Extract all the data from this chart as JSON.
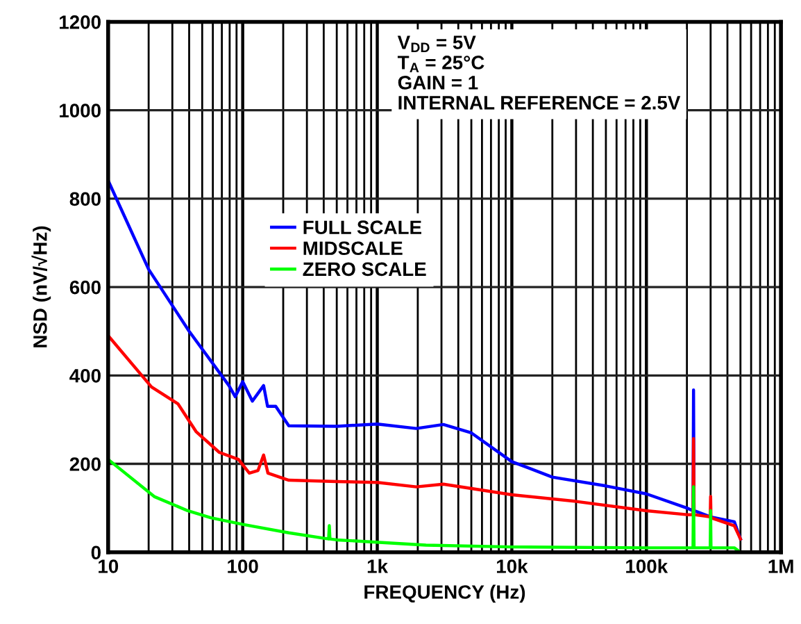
{
  "chart_data": {
    "type": "line",
    "xlabel": "FREQUENCY (Hz)",
    "ylabel": "NSD (nV/√Hz)",
    "xlim": [
      10,
      1000000
    ],
    "ylim": [
      0,
      1200
    ],
    "xticks": [
      {
        "value": 10,
        "label": "10"
      },
      {
        "value": 100,
        "label": "100"
      },
      {
        "value": 1000,
        "label": "1k"
      },
      {
        "value": 10000,
        "label": "10k"
      },
      {
        "value": 100000,
        "label": "100k"
      },
      {
        "value": 1000000,
        "label": "1M"
      }
    ],
    "yticks": [
      0,
      200,
      400,
      600,
      800,
      1000,
      1200
    ],
    "log": "x",
    "grid": true,
    "legend": "center left",
    "marker": "none",
    "line_style": "solid",
    "annotations": [
      "V$_{DD}$ = 5V",
      "T$_{A}$ = 25°C",
      "GAIN = 1",
      "INTERNAL REFERENCE = 2.5V"
    ],
    "series": [
      {
        "name": "FULL SCALE",
        "color": "#0000ff",
        "x": [
          10,
          20,
          40,
          79,
          88,
          100,
          118,
          143,
          153,
          176,
          220,
          500,
          1000,
          1950,
          3100,
          5000,
          10000,
          20000,
          50000,
          100000,
          200000,
          222000,
          224000,
          226000,
          300000,
          450000,
          500000
        ],
        "values": [
          841,
          640,
          500,
          377,
          352,
          386,
          342,
          377,
          330,
          330,
          286,
          285,
          290,
          280,
          289,
          270,
          205,
          170,
          150,
          132,
          100,
          94,
          367,
          94,
          80,
          69,
          30
        ]
      },
      {
        "name": "MIDSCALE",
        "color": "#ff0000",
        "x": [
          10,
          21,
          33,
          45,
          67,
          93,
          112,
          130,
          143,
          154,
          220,
          500,
          1000,
          1950,
          3100,
          10000,
          30000,
          100000,
          200000,
          222000,
          224000,
          226000,
          298000,
          300000,
          302000,
          450000,
          500000
        ],
        "values": [
          490,
          374,
          336,
          273,
          226,
          210,
          179,
          185,
          220,
          179,
          163,
          160,
          158,
          148,
          154,
          130,
          115,
          94,
          85,
          85,
          257,
          85,
          80,
          126,
          78,
          60,
          30
        ]
      },
      {
        "name": "ZERO SCALE",
        "color": "#00ff00",
        "x": [
          10,
          22,
          39,
          58,
          100,
          220,
          435,
          440,
          445,
          500,
          2300,
          10000,
          100000,
          222000,
          224000,
          226000,
          298000,
          300000,
          302000,
          450000,
          500000
        ],
        "values": [
          210,
          126,
          94,
          78,
          63,
          44,
          30,
          60,
          30,
          28,
          16,
          12,
          10,
          10,
          148,
          10,
          10,
          94,
          10,
          10,
          0
        ]
      }
    ]
  }
}
